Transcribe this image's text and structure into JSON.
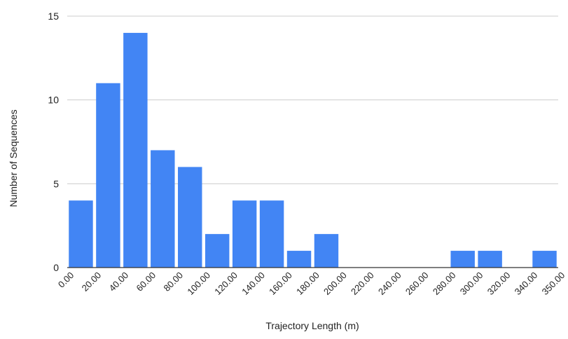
{
  "chart_data": {
    "type": "bar",
    "xlabel": "Trajectory Length (m)",
    "ylabel": "Number of Sequences",
    "ylim": [
      0,
      15
    ],
    "yticks": [
      0,
      5,
      10,
      15
    ],
    "grid": true,
    "legend": "none",
    "bar_color": "#4285f4",
    "tick_labels": [
      "0.00",
      "20.00",
      "40.00",
      "60.00",
      "80.00",
      "100.00",
      "120.00",
      "140.00",
      "160.00",
      "180.00",
      "200.00",
      "220.00",
      "240.00",
      "260.00",
      "280.00",
      "300.00",
      "320.00",
      "340.00",
      "350.00"
    ],
    "bins": [
      {
        "start": 0,
        "end": 20,
        "count": 4
      },
      {
        "start": 20,
        "end": 40,
        "count": 11
      },
      {
        "start": 40,
        "end": 60,
        "count": 14
      },
      {
        "start": 60,
        "end": 80,
        "count": 7
      },
      {
        "start": 80,
        "end": 100,
        "count": 6
      },
      {
        "start": 100,
        "end": 120,
        "count": 2
      },
      {
        "start": 120,
        "end": 140,
        "count": 4
      },
      {
        "start": 140,
        "end": 160,
        "count": 4
      },
      {
        "start": 160,
        "end": 180,
        "count": 1
      },
      {
        "start": 180,
        "end": 200,
        "count": 2
      },
      {
        "start": 200,
        "end": 220,
        "count": 0
      },
      {
        "start": 220,
        "end": 240,
        "count": 0
      },
      {
        "start": 240,
        "end": 260,
        "count": 0
      },
      {
        "start": 260,
        "end": 280,
        "count": 0
      },
      {
        "start": 280,
        "end": 300,
        "count": 1
      },
      {
        "start": 300,
        "end": 320,
        "count": 1
      },
      {
        "start": 320,
        "end": 340,
        "count": 0
      },
      {
        "start": 340,
        "end": 350,
        "count": 1
      }
    ]
  }
}
